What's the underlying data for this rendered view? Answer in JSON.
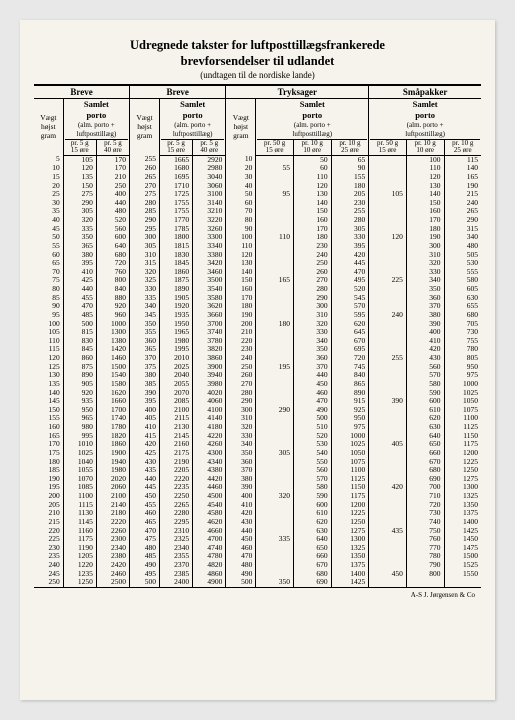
{
  "title_line1": "Udregnede takster for luftposttillægsfrankerede",
  "title_line2": "brevforsendelser til udlandet",
  "subtitle": "(undtagen til de nordiske lande)",
  "footer": "A-S J. Jørgensen & Co",
  "sections": {
    "breve": "Breve",
    "tryksager": "Tryksager",
    "smapakker": "Småpakker"
  },
  "col_labels": {
    "vaegt_top": "Vægt",
    "vaegt_mid": "højst",
    "vaegt_bot": "gram",
    "samlet": "Samlet",
    "porto": "porto",
    "alm": "(alm. porto +",
    "luft": "luftposttillæg)",
    "pr5g": "pr. 5 g",
    "pr10g": "pr. 10 g",
    "pr50g": "pr. 50 g",
    "r15": "15 øre",
    "r40": "40 øre",
    "r10": "10 øre",
    "r25": "25 øre"
  },
  "breve": [
    [
      5,
      105,
      170,
      255,
      1665,
      2920
    ],
    [
      10,
      120,
      170,
      260,
      1680,
      2980
    ],
    [
      15,
      135,
      210,
      265,
      1695,
      3040
    ],
    [
      20,
      150,
      250,
      270,
      1710,
      3060
    ],
    [
      25,
      275,
      400,
      275,
      1725,
      3100
    ],
    [
      30,
      290,
      440,
      280,
      1755,
      3140
    ],
    [
      35,
      305,
      480,
      285,
      1755,
      3210
    ],
    [
      40,
      320,
      520,
      290,
      1770,
      3220
    ],
    [
      45,
      335,
      560,
      295,
      1785,
      3260
    ],
    [
      50,
      350,
      600,
      300,
      1800,
      3300
    ],
    [
      55,
      365,
      640,
      305,
      1815,
      3340
    ],
    [
      60,
      380,
      680,
      310,
      1830,
      3380
    ],
    [
      65,
      395,
      720,
      315,
      1845,
      3420
    ],
    [
      70,
      410,
      760,
      320,
      1860,
      3460
    ],
    [
      75,
      425,
      800,
      325,
      1875,
      3500
    ],
    [
      80,
      440,
      840,
      330,
      1890,
      3540
    ],
    [
      85,
      455,
      880,
      335,
      1905,
      3580
    ],
    [
      90,
      470,
      920,
      340,
      1920,
      3620
    ],
    [
      95,
      485,
      960,
      345,
      1935,
      3660
    ],
    [
      100,
      500,
      1000,
      350,
      1950,
      3700
    ],
    [
      105,
      815,
      1300,
      355,
      1965,
      3740
    ],
    [
      110,
      830,
      1380,
      360,
      1980,
      3780
    ],
    [
      115,
      845,
      1420,
      365,
      1995,
      3820
    ],
    [
      120,
      860,
      1460,
      370,
      2010,
      3860
    ],
    [
      125,
      875,
      1500,
      375,
      2025,
      3900
    ],
    [
      130,
      890,
      1540,
      380,
      2040,
      3940
    ],
    [
      135,
      905,
      1580,
      385,
      2055,
      3980
    ],
    [
      140,
      920,
      1620,
      390,
      2070,
      4020
    ],
    [
      145,
      935,
      1660,
      395,
      2085,
      4060
    ],
    [
      150,
      950,
      1700,
      400,
      2100,
      4100
    ],
    [
      155,
      965,
      1740,
      405,
      2115,
      4140
    ],
    [
      160,
      980,
      1780,
      410,
      2130,
      4180
    ],
    [
      165,
      995,
      1820,
      415,
      2145,
      4220
    ],
    [
      170,
      1010,
      1860,
      420,
      2160,
      4260
    ],
    [
      175,
      1025,
      1900,
      425,
      2175,
      4300
    ],
    [
      180,
      1040,
      1940,
      430,
      2190,
      4340
    ],
    [
      185,
      1055,
      1980,
      435,
      2205,
      4380
    ],
    [
      190,
      1070,
      2020,
      440,
      2220,
      4420
    ],
    [
      195,
      1085,
      2060,
      445,
      2235,
      4460
    ],
    [
      200,
      1100,
      2100,
      450,
      2250,
      4500
    ],
    [
      205,
      1115,
      2140,
      455,
      2265,
      4540
    ],
    [
      210,
      1130,
      2180,
      460,
      2280,
      4580
    ],
    [
      215,
      1145,
      2220,
      465,
      2295,
      4620
    ],
    [
      220,
      1160,
      2260,
      470,
      2310,
      4660
    ],
    [
      225,
      1175,
      2300,
      475,
      2325,
      4700
    ],
    [
      230,
      1190,
      2340,
      480,
      2340,
      4740
    ],
    [
      235,
      1205,
      2380,
      485,
      2355,
      4780
    ],
    [
      240,
      1220,
      2420,
      490,
      2370,
      4820
    ],
    [
      245,
      1235,
      2460,
      495,
      2385,
      4860
    ],
    [
      250,
      1250,
      2500,
      500,
      2400,
      4900
    ]
  ],
  "tryk": [
    [
      10,
      null,
      50,
      65
    ],
    [
      20,
      55,
      60,
      90
    ],
    [
      30,
      null,
      110,
      155
    ],
    [
      40,
      null,
      120,
      180
    ],
    [
      50,
      95,
      130,
      205
    ],
    [
      60,
      null,
      140,
      230
    ],
    [
      70,
      null,
      150,
      255
    ],
    [
      80,
      null,
      160,
      280
    ],
    [
      90,
      null,
      170,
      305
    ],
    [
      100,
      110,
      180,
      330
    ],
    [
      110,
      null,
      230,
      395
    ],
    [
      120,
      null,
      240,
      420
    ],
    [
      130,
      null,
      250,
      445
    ],
    [
      140,
      null,
      260,
      470
    ],
    [
      150,
      165,
      270,
      495
    ],
    [
      160,
      null,
      280,
      520
    ],
    [
      170,
      null,
      290,
      545
    ],
    [
      180,
      null,
      300,
      570
    ],
    [
      190,
      null,
      310,
      595
    ],
    [
      200,
      180,
      320,
      620
    ],
    [
      210,
      null,
      330,
      645
    ],
    [
      220,
      null,
      340,
      670
    ],
    [
      230,
      null,
      350,
      695
    ],
    [
      240,
      null,
      360,
      720
    ],
    [
      250,
      195,
      370,
      745
    ],
    [
      260,
      null,
      440,
      840
    ],
    [
      270,
      null,
      450,
      865
    ],
    [
      280,
      null,
      460,
      890
    ],
    [
      290,
      null,
      470,
      915
    ],
    [
      300,
      290,
      490,
      925
    ],
    [
      310,
      null,
      500,
      950
    ],
    [
      320,
      null,
      510,
      975
    ],
    [
      330,
      null,
      520,
      1000
    ],
    [
      340,
      null,
      530,
      1025
    ],
    [
      350,
      305,
      540,
      1050
    ],
    [
      360,
      null,
      550,
      1075
    ],
    [
      370,
      null,
      560,
      1100
    ],
    [
      380,
      null,
      570,
      1125
    ],
    [
      390,
      null,
      580,
      1150
    ],
    [
      400,
      320,
      590,
      1175
    ],
    [
      410,
      null,
      600,
      1200
    ],
    [
      420,
      null,
      610,
      1225
    ],
    [
      430,
      null,
      620,
      1250
    ],
    [
      440,
      null,
      630,
      1275
    ],
    [
      450,
      335,
      640,
      1300
    ],
    [
      460,
      null,
      650,
      1325
    ],
    [
      470,
      null,
      660,
      1350
    ],
    [
      480,
      null,
      670,
      1375
    ],
    [
      490,
      null,
      680,
      1400
    ],
    [
      500,
      350,
      690,
      1425
    ],
    [
      null,
      null,
      700,
      1450
    ]
  ],
  "sma": [
    [
      null,
      100,
      115
    ],
    [
      null,
      110,
      140
    ],
    [
      null,
      120,
      165
    ],
    [
      null,
      130,
      190
    ],
    [
      105,
      140,
      215
    ],
    [
      null,
      150,
      240
    ],
    [
      null,
      160,
      265
    ],
    [
      null,
      170,
      290
    ],
    [
      null,
      180,
      315
    ],
    [
      120,
      190,
      340
    ],
    [
      null,
      300,
      480
    ],
    [
      null,
      310,
      505
    ],
    [
      null,
      320,
      530
    ],
    [
      null,
      330,
      555
    ],
    [
      225,
      340,
      580
    ],
    [
      null,
      350,
      605
    ],
    [
      null,
      360,
      630
    ],
    [
      null,
      370,
      655
    ],
    [
      240,
      380,
      680
    ],
    [
      null,
      390,
      705
    ],
    [
      null,
      400,
      730
    ],
    [
      null,
      410,
      755
    ],
    [
      null,
      420,
      780
    ],
    [
      255,
      430,
      805
    ],
    [
      null,
      560,
      950
    ],
    [
      null,
      570,
      975
    ],
    [
      null,
      580,
      1000
    ],
    [
      null,
      590,
      1025
    ],
    [
      390,
      600,
      1050
    ],
    [
      null,
      610,
      1075
    ],
    [
      null,
      620,
      1100
    ],
    [
      null,
      630,
      1125
    ],
    [
      null,
      640,
      1150
    ],
    [
      405,
      650,
      1175
    ],
    [
      null,
      660,
      1200
    ],
    [
      null,
      670,
      1225
    ],
    [
      null,
      680,
      1250
    ],
    [
      null,
      690,
      1275
    ],
    [
      420,
      700,
      1300
    ],
    [
      null,
      710,
      1325
    ],
    [
      null,
      720,
      1350
    ],
    [
      null,
      730,
      1375
    ],
    [
      null,
      740,
      1400
    ],
    [
      435,
      750,
      1425
    ],
    [
      null,
      760,
      1450
    ],
    [
      null,
      770,
      1475
    ],
    [
      null,
      780,
      1500
    ],
    [
      null,
      790,
      1525
    ],
    [
      450,
      800,
      1550
    ]
  ]
}
